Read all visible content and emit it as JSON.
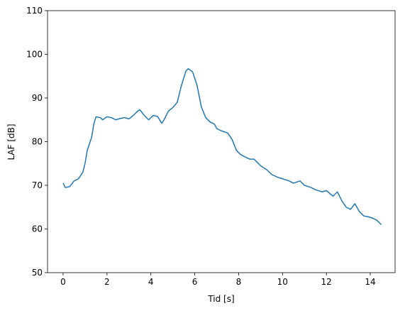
{
  "chart_data": {
    "type": "line",
    "xlabel": "Tid [s]",
    "ylabel": "LAF [dB]",
    "x": [
      0,
      0.1,
      0.3,
      0.5,
      0.7,
      0.9,
      1.0,
      1.1,
      1.3,
      1.4,
      1.5,
      1.7,
      1.8,
      2.0,
      2.2,
      2.4,
      2.6,
      2.8,
      3.0,
      3.2,
      3.4,
      3.5,
      3.7,
      3.9,
      4.1,
      4.3,
      4.5,
      4.6,
      4.8,
      5.0,
      5.2,
      5.4,
      5.6,
      5.7,
      5.9,
      6.1,
      6.3,
      6.5,
      6.7,
      6.9,
      7.0,
      7.2,
      7.5,
      7.7,
      7.9,
      8.1,
      8.3,
      8.5,
      8.7,
      9.0,
      9.3,
      9.5,
      9.8,
      10.0,
      10.3,
      10.5,
      10.8,
      11.0,
      11.3,
      11.5,
      11.8,
      12.0,
      12.3,
      12.5,
      12.7,
      12.9,
      13.1,
      13.3,
      13.5,
      13.7,
      13.9,
      14.1,
      14.3,
      14.5
    ],
    "series": [
      {
        "name": "LAF",
        "color": "#1f77b4",
        "values": [
          70.5,
          69.5,
          69.7,
          71,
          71.5,
          73,
          75,
          78,
          81,
          84,
          85.7,
          85.5,
          85,
          85.7,
          85.5,
          85,
          85.3,
          85.5,
          85.2,
          86,
          87,
          87.3,
          86,
          85,
          86,
          85.8,
          84.2,
          85,
          87,
          87.8,
          89,
          93,
          96.2,
          96.7,
          96,
          93,
          88,
          85.5,
          84.5,
          84,
          83,
          82.5,
          82,
          80.5,
          78,
          77,
          76.5,
          76,
          76,
          74.5,
          73.5,
          72.5,
          71.8,
          71.5,
          71,
          70.5,
          71,
          70,
          69.5,
          69,
          68.5,
          68.8,
          67.5,
          68.5,
          66.5,
          65,
          64.5,
          65.8,
          64,
          63,
          62.8,
          62.5,
          62,
          61
        ]
      }
    ],
    "xlim": [
      -0.71,
      15.13
    ],
    "xticks": [
      0,
      2,
      4,
      6,
      8,
      10,
      12,
      14
    ],
    "ylim": [
      50,
      110
    ],
    "yticks": [
      50,
      60,
      70,
      80,
      90,
      100,
      110
    ]
  }
}
